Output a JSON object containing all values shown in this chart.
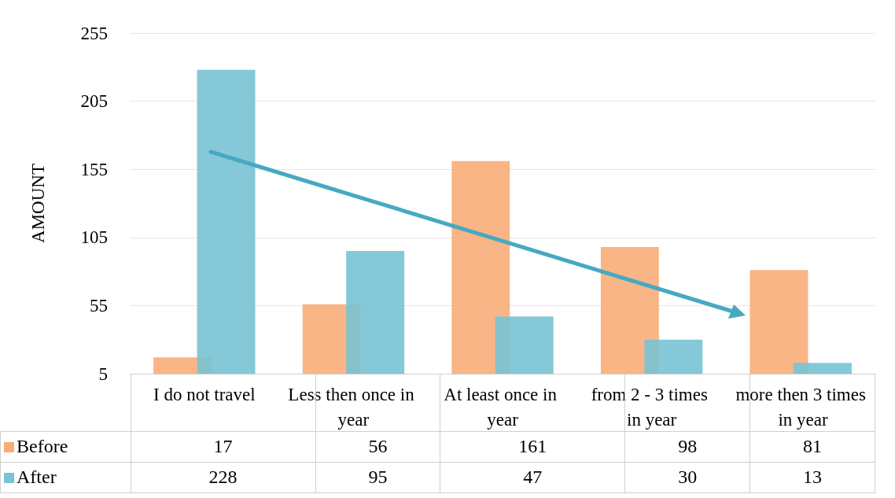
{
  "chart_data": {
    "type": "bar",
    "ylabel": "AMOUNT",
    "categories": [
      "I do not travel",
      "Less then once in year",
      "At least once in year",
      "from 2 - 3 times in year",
      "more then 3 times in year"
    ],
    "series": [
      {
        "name": "Before",
        "color": "#f8ad78",
        "values": [
          17,
          56,
          161,
          98,
          81
        ]
      },
      {
        "name": "After",
        "color": "#78c3d4",
        "values": [
          228,
          95,
          47,
          30,
          13
        ]
      }
    ],
    "ylim": [
      5,
      255
    ],
    "yticks": [
      5,
      55,
      105,
      155,
      205,
      255
    ],
    "grid": "y",
    "legend": "bottom",
    "data_labels": true
  }
}
